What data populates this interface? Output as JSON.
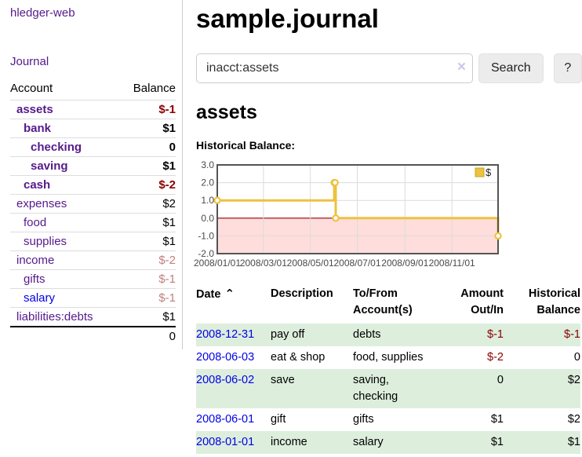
{
  "brand": "hledger-web",
  "nav": {
    "journal": "Journal"
  },
  "sidebar": {
    "headers": {
      "account": "Account",
      "balance": "Balance"
    },
    "rows": [
      {
        "account": "assets",
        "balance": "$-1"
      },
      {
        "account": "bank",
        "balance": "$1"
      },
      {
        "account": "checking",
        "balance": "0"
      },
      {
        "account": "saving",
        "balance": "$1"
      },
      {
        "account": "cash",
        "balance": "$-2"
      },
      {
        "account": "expenses",
        "balance": "$2"
      },
      {
        "account": "food",
        "balance": "$1"
      },
      {
        "account": "supplies",
        "balance": "$1"
      },
      {
        "account": "income",
        "balance": "$-2"
      },
      {
        "account": "gifts",
        "balance": "$-1"
      },
      {
        "account": "salary",
        "balance": "$-1"
      },
      {
        "account": "liabilities:debts",
        "balance": "$1"
      }
    ],
    "total": "0"
  },
  "header": {
    "title": "sample.journal"
  },
  "search": {
    "value": "inacct:assets",
    "clear_icon": "×",
    "button_label": "Search",
    "help_label": "?"
  },
  "account_view": {
    "title": "assets",
    "chart_heading": "Historical Balance:"
  },
  "chart_data": {
    "type": "line",
    "step": true,
    "title": "Historical Balance",
    "series": [
      {
        "name": "$",
        "color": "#edc240",
        "points": [
          [
            "2008-01-01",
            1
          ],
          [
            "2008-06-01",
            2
          ],
          [
            "2008-06-02",
            2
          ],
          [
            "2008-06-03",
            0
          ],
          [
            "2008-12-31",
            -1
          ]
        ]
      }
    ],
    "xlim": [
      "2008-01-01",
      "2008-12-31"
    ],
    "ylim": [
      -2,
      3
    ],
    "yticks": [
      "3.0",
      "2.0",
      "1.0",
      "0.0",
      "-1.0",
      "-2.0"
    ],
    "xticks": [
      "2008/01/01",
      "2008/03/01",
      "2008/05/01",
      "2008/07/01",
      "2008/09/01",
      "2008/11/01"
    ],
    "grid": true,
    "legend_position": "top-right",
    "negative_region_color": "#ffdddd",
    "zero_line_color": "#990000"
  },
  "register": {
    "headers": {
      "date": "Date",
      "sort_icon": "⌃",
      "description": "Description",
      "tofrom": "To/From Account(s)",
      "amount": "Amount Out/In",
      "balance": "Historical Balance"
    },
    "rows": [
      {
        "date": "2008-12-31",
        "description": "pay off",
        "accounts": "debts",
        "amount": "$-1",
        "balance": "$-1"
      },
      {
        "date": "2008-06-03",
        "description": "eat & shop",
        "accounts": "food, supplies",
        "amount": "$-2",
        "balance": "0"
      },
      {
        "date": "2008-06-02",
        "description": "save",
        "accounts": "saving, checking",
        "amount": "0",
        "balance": "$2"
      },
      {
        "date": "2008-06-01",
        "description": "gift",
        "accounts": "gifts",
        "amount": "$1",
        "balance": "$2"
      },
      {
        "date": "2008-01-01",
        "description": "income",
        "accounts": "salary",
        "amount": "$1",
        "balance": "$1"
      }
    ]
  },
  "colors": {
    "accent_purple": "#551a8b",
    "link_blue": "#0000e6",
    "negative_strong": "#8b0000",
    "negative_soft": "#c08080",
    "stripe_green": "#ddeedd",
    "chart_line": "#edc240",
    "chart_negative_bg": "#ffdddd",
    "chart_zero_line": "#990000"
  }
}
